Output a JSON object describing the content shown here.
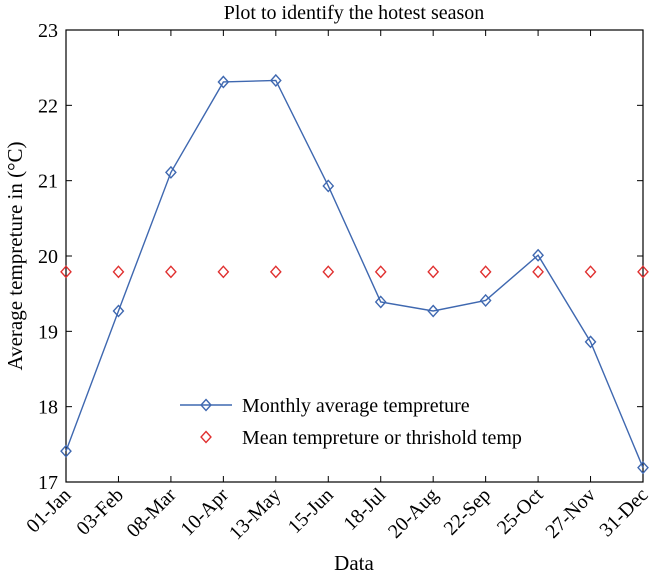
{
  "chart_data": {
    "type": "line",
    "title": "Plot to identify the hotest season",
    "xlabel": "Data",
    "ylabel": "Average tempreture in (°C)",
    "categories": [
      "01-Jan",
      "03-Feb",
      "08-Mar",
      "10-Apr",
      "13-May",
      "15-Jun",
      "18-Jul",
      "20-Aug",
      "22-Sep",
      "25-Oct",
      "27-Nov",
      "31-Dec"
    ],
    "ylim": [
      17,
      23
    ],
    "yticks": [
      "17",
      "18",
      "19",
      "20",
      "21",
      "22",
      "23"
    ],
    "grid": false,
    "legend_position": "bottom-center",
    "series": [
      {
        "name": "Monthly average tempreture",
        "values": [
          17.41,
          19.27,
          21.11,
          22.31,
          22.33,
          20.93,
          19.39,
          19.27,
          19.41,
          20.01,
          18.86,
          17.19
        ],
        "color": "#3f68b0",
        "marker": "diamond",
        "line": true
      },
      {
        "name": "Mean tempreture or thrishold temp",
        "values": [
          19.79,
          19.79,
          19.79,
          19.79,
          19.79,
          19.79,
          19.79,
          19.79,
          19.79,
          19.79,
          19.79,
          19.79
        ],
        "color": "#e03030",
        "marker": "diamond",
        "line": false
      }
    ]
  }
}
